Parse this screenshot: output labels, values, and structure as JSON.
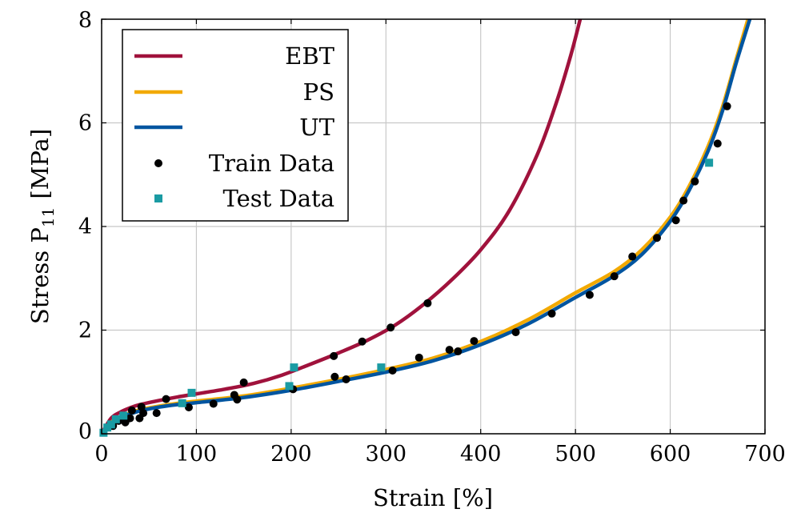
{
  "chart_data": {
    "type": "line",
    "xlabel": "Strain [%]",
    "ylabel": "Stress P",
    "ylabel_sub": "11",
    "ylabel_unit": "[MPa]",
    "xlim": [
      0,
      700
    ],
    "ylim": [
      0,
      8
    ],
    "xticks": [
      0,
      100,
      200,
      300,
      400,
      500,
      600,
      700
    ],
    "yticks": [
      0,
      2,
      4,
      6,
      8
    ],
    "grid": true,
    "legend_position": "top-left",
    "colors": {
      "EBT": "#a0123c",
      "PS": "#f2a900",
      "UT": "#0055a0",
      "train": "#000000",
      "test": "#1a9ba3"
    },
    "series": [
      {
        "name": "EBT",
        "kind": "line",
        "x": [
          0,
          10,
          20,
          30,
          40,
          60,
          80,
          100,
          130,
          160,
          190,
          220,
          250,
          280,
          310,
          340,
          370,
          400,
          430,
          460,
          480,
          495,
          505
        ],
        "y": [
          0,
          0.3,
          0.42,
          0.5,
          0.56,
          0.64,
          0.71,
          0.77,
          0.86,
          0.97,
          1.13,
          1.34,
          1.56,
          1.8,
          2.1,
          2.5,
          2.98,
          3.55,
          4.3,
          5.4,
          6.4,
          7.3,
          8.0
        ]
      },
      {
        "name": "PS",
        "kind": "line",
        "x": [
          0,
          10,
          20,
          40,
          70,
          100,
          150,
          200,
          250,
          300,
          350,
          400,
          450,
          500,
          540,
          570,
          600,
          620,
          640,
          655,
          670,
          682
        ],
        "y": [
          0,
          0.22,
          0.33,
          0.46,
          0.56,
          0.63,
          0.73,
          0.88,
          1.05,
          1.24,
          1.46,
          1.78,
          2.2,
          2.72,
          3.12,
          3.55,
          4.18,
          4.78,
          5.55,
          6.3,
          7.25,
          8.0
        ]
      },
      {
        "name": "UT",
        "kind": "line",
        "x": [
          0,
          10,
          20,
          40,
          70,
          100,
          150,
          200,
          250,
          300,
          350,
          400,
          450,
          500,
          540,
          570,
          600,
          620,
          640,
          655,
          670,
          684
        ],
        "y": [
          0,
          0.2,
          0.31,
          0.44,
          0.54,
          0.6,
          0.7,
          0.84,
          1.01,
          1.19,
          1.41,
          1.72,
          2.12,
          2.63,
          3.04,
          3.46,
          4.1,
          4.7,
          5.46,
          6.22,
          7.18,
          8.0
        ]
      },
      {
        "name": "Train Data",
        "kind": "scatter",
        "marker": "circle",
        "x": [
          12,
          18,
          25,
          30,
          32,
          40,
          42,
          44,
          58,
          68,
          92,
          118,
          140,
          143,
          150,
          202,
          245,
          246,
          258,
          275,
          305,
          307,
          335,
          344,
          367,
          376,
          393,
          437,
          475,
          515,
          541,
          560,
          586,
          606,
          614,
          626,
          650,
          660
        ],
        "y": [
          0.15,
          0.25,
          0.22,
          0.3,
          0.45,
          0.3,
          0.52,
          0.4,
          0.4,
          0.67,
          0.51,
          0.58,
          0.75,
          0.66,
          0.99,
          0.86,
          1.5,
          1.1,
          1.05,
          1.78,
          2.05,
          1.22,
          1.47,
          2.52,
          1.62,
          1.59,
          1.79,
          1.96,
          2.32,
          2.68,
          3.04,
          3.42,
          3.78,
          4.12,
          4.5,
          4.87,
          5.6,
          6.32
        ]
      },
      {
        "name": "Test Data",
        "kind": "scatter",
        "marker": "square",
        "x": [
          2,
          6,
          10,
          15,
          23,
          85,
          95,
          198,
          203,
          295,
          641
        ],
        "y": [
          0.02,
          0.12,
          0.18,
          0.28,
          0.35,
          0.59,
          0.79,
          0.92,
          1.28,
          1.28,
          5.23
        ]
      }
    ]
  }
}
